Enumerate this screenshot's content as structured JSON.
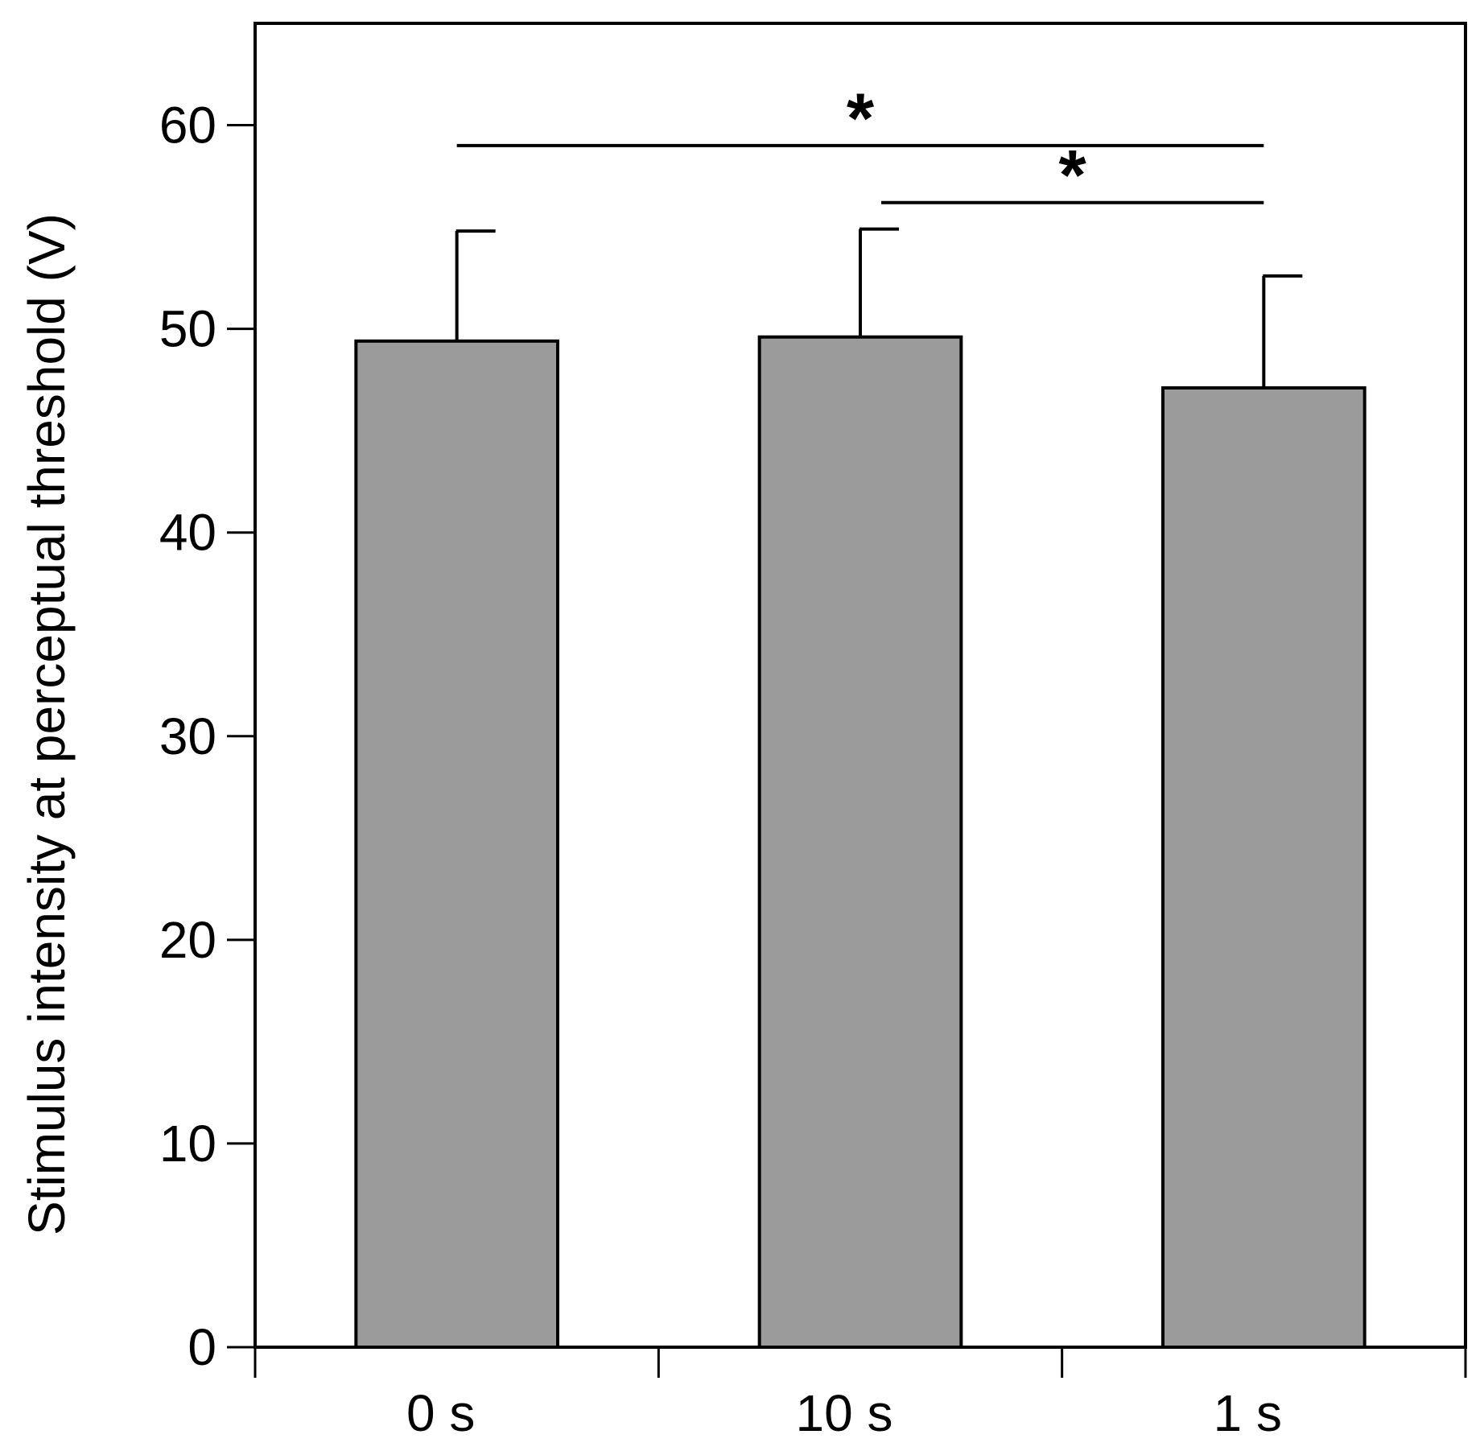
{
  "chart_data": {
    "type": "bar",
    "categories": [
      "0 s",
      "10 s",
      "1 s"
    ],
    "values": [
      49.4,
      49.6,
      47.1
    ],
    "errors": [
      5.4,
      5.3,
      5.5
    ],
    "title": "",
    "xlabel": "",
    "ylabel": "Stimulus intensity at perceptual threshold (V)",
    "ylim": [
      0,
      65
    ],
    "yticks": [
      0,
      10,
      20,
      30,
      40,
      50,
      60
    ],
    "bar_color": "#9b9b9b",
    "grid": false,
    "legend": "none",
    "significance": [
      {
        "from": "0 s",
        "to": "1 s",
        "y": 59.0,
        "label": "*"
      },
      {
        "from": "10 s",
        "to": "1 s",
        "y": 56.2,
        "label": "*"
      }
    ]
  }
}
